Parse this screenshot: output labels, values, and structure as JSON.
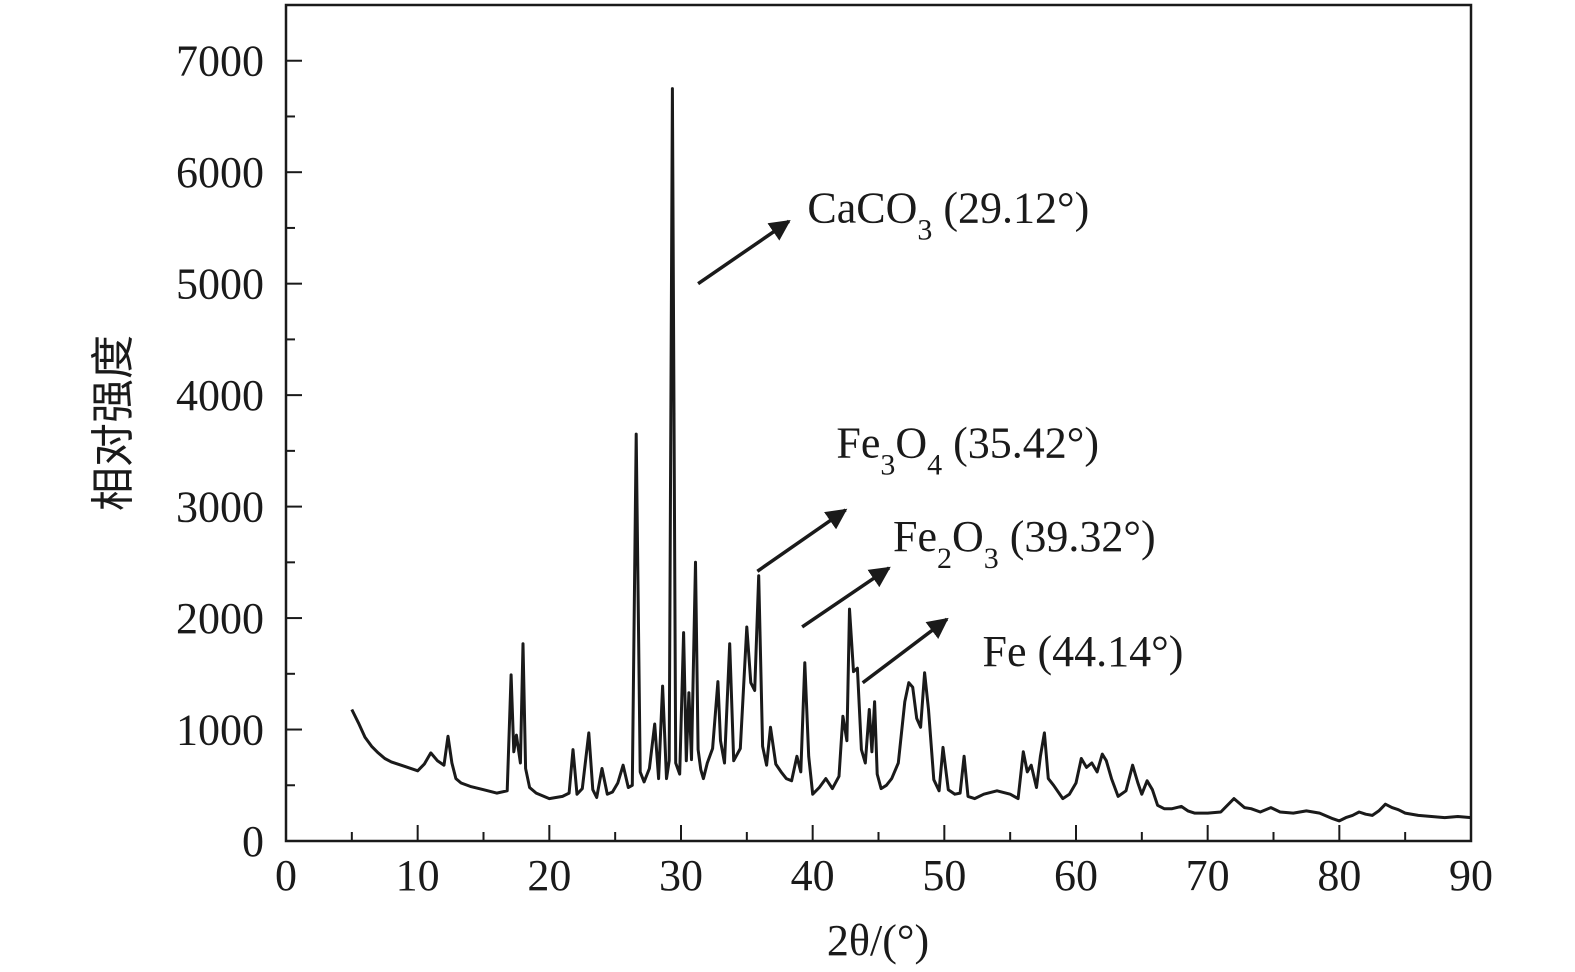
{
  "chart_data": {
    "type": "line",
    "xlabel": "2θ/(°)",
    "ylabel": "相对强度",
    "xlim": [
      0,
      90
    ],
    "ylim": [
      0,
      7500
    ],
    "xticks": [
      0,
      10,
      20,
      30,
      40,
      50,
      60,
      70,
      80,
      90
    ],
    "yticks": [
      0,
      1000,
      2000,
      3000,
      4000,
      5000,
      6000,
      7000
    ],
    "grid": false,
    "line_color": "#1a1a1a",
    "series": [
      {
        "x": [
          5.0,
          5.5,
          6.0,
          6.5,
          7.0,
          7.5,
          8.0,
          9.0,
          10.0,
          10.5,
          11.0,
          11.5,
          12.0,
          12.3,
          12.6,
          12.9,
          13.3,
          14.0,
          15.0,
          16.0,
          16.8,
          17.1,
          17.3,
          17.5,
          17.8,
          18.0,
          18.2,
          18.5,
          19.0,
          20.0,
          21.0,
          21.5,
          21.8,
          22.1,
          22.5,
          23.0,
          23.3,
          23.6,
          24.0,
          24.4,
          24.8,
          25.2,
          25.6,
          26.0,
          26.3,
          26.6,
          26.9,
          27.2,
          27.6,
          28.0,
          28.3,
          28.6,
          28.9,
          29.1,
          29.35,
          29.6,
          29.9,
          30.2,
          30.4,
          30.6,
          30.8,
          31.1,
          31.3,
          31.5,
          31.7,
          32.0,
          32.4,
          32.8,
          33.0,
          33.3,
          33.7,
          34.0,
          34.5,
          35.0,
          35.3,
          35.6,
          35.9,
          36.2,
          36.5,
          36.8,
          37.2,
          37.6,
          38.0,
          38.4,
          38.8,
          39.1,
          39.4,
          39.7,
          40.0,
          40.5,
          41.0,
          41.5,
          42.0,
          42.3,
          42.6,
          42.8,
          43.1,
          43.4,
          43.7,
          44.0,
          44.3,
          44.5,
          44.7,
          44.9,
          45.2,
          45.6,
          46.0,
          46.5,
          47.0,
          47.3,
          47.6,
          47.9,
          48.2,
          48.5,
          48.8,
          49.2,
          49.6,
          49.9,
          50.3,
          50.8,
          51.2,
          51.5,
          51.8,
          52.3,
          53.0,
          54.0,
          55.0,
          55.6,
          56.0,
          56.3,
          56.6,
          57.0,
          57.3,
          57.6,
          57.9,
          58.3,
          59.0,
          59.5,
          60.0,
          60.4,
          60.8,
          61.2,
          61.6,
          62.0,
          62.3,
          62.7,
          63.2,
          63.8,
          64.3,
          64.7,
          65.0,
          65.4,
          65.8,
          66.2,
          66.7,
          67.3,
          68.0,
          68.5,
          69.0,
          70.0,
          71.0,
          72.0,
          72.8,
          73.3,
          74.0,
          74.8,
          75.5,
          76.5,
          77.5,
          78.5,
          79.5,
          80.0,
          80.5,
          81.0,
          81.5,
          82.0,
          82.5,
          83.0,
          83.5,
          84.0,
          84.5,
          85.0,
          86.0,
          87.0,
          88.0,
          89.0,
          90.0
        ],
        "y": [
          1180,
          1060,
          930,
          850,
          790,
          740,
          710,
          670,
          630,
          690,
          790,
          720,
          680,
          940,
          700,
          560,
          520,
          490,
          460,
          430,
          450,
          1490,
          800,
          950,
          700,
          1770,
          650,
          480,
          430,
          380,
          400,
          430,
          820,
          420,
          470,
          970,
          460,
          390,
          650,
          420,
          440,
          520,
          680,
          480,
          500,
          3650,
          620,
          530,
          650,
          1050,
          560,
          1390,
          560,
          720,
          6750,
          700,
          600,
          1870,
          720,
          1330,
          730,
          2500,
          820,
          640,
          560,
          700,
          830,
          1430,
          900,
          700,
          1770,
          720,
          830,
          1920,
          1420,
          1350,
          2380,
          850,
          680,
          1020,
          690,
          620,
          560,
          540,
          760,
          620,
          1600,
          760,
          420,
          480,
          560,
          470,
          580,
          1120,
          900,
          2080,
          1520,
          1550,
          820,
          700,
          1180,
          800,
          1250,
          600,
          470,
          500,
          560,
          700,
          1250,
          1420,
          1380,
          1100,
          1020,
          1510,
          1180,
          550,
          450,
          840,
          460,
          420,
          430,
          760,
          400,
          380,
          420,
          450,
          420,
          380,
          800,
          620,
          680,
          480,
          760,
          970,
          560,
          500,
          380,
          420,
          520,
          740,
          660,
          700,
          620,
          780,
          720,
          560,
          400,
          450,
          680,
          520,
          420,
          540,
          460,
          320,
          290,
          290,
          310,
          270,
          250,
          250,
          260,
          380,
          300,
          290,
          260,
          300,
          260,
          250,
          270,
          250,
          200,
          180,
          210,
          230,
          260,
          240,
          230,
          270,
          330,
          300,
          280,
          250,
          230,
          220,
          210,
          220,
          210
        ]
      }
    ],
    "annotations": [
      {
        "label": "CaCO",
        "sub": "3",
        "rest": " (29.12°)",
        "tail": [
          31.3,
          5000
        ],
        "head": [
          38.2,
          5560
        ],
        "text_x": 39.6,
        "text_y": 5550
      },
      {
        "label": "Fe",
        "sub": "3",
        "rest": "O",
        "sub2": "4",
        "rest2": " (35.42°)",
        "tail": [
          35.8,
          2420
        ],
        "head": [
          42.5,
          2970
        ],
        "text_x": 41.8,
        "text_y": 3440
      },
      {
        "label": "Fe",
        "sub": "2",
        "rest": "O",
        "sub2": "3",
        "rest2": " (39.32°)",
        "tail": [
          39.2,
          1920
        ],
        "head": [
          45.8,
          2450
        ],
        "text_x": 46.1,
        "text_y": 2600
      },
      {
        "label": "Fe (44.14°)",
        "tail": [
          43.8,
          1420
        ],
        "head": [
          50.2,
          1990
        ],
        "text_x": 52.9,
        "text_y": 1570
      }
    ]
  }
}
